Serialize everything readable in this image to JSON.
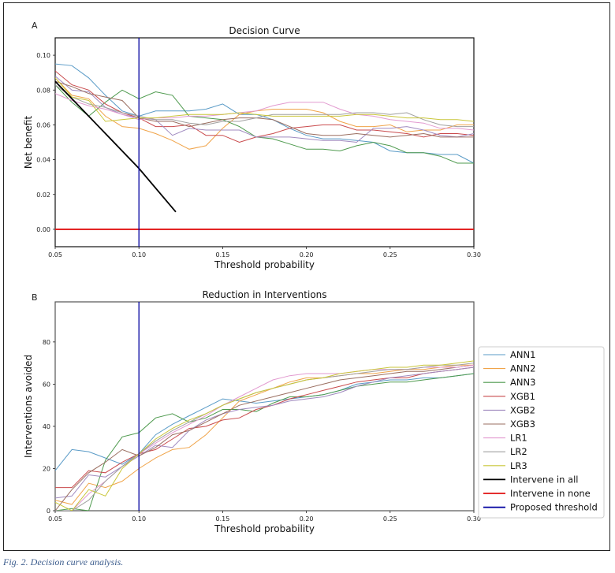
{
  "caption": "Fig. 2. Decision curve analysis.",
  "series_meta": [
    {
      "name": "ANN1",
      "color": "#5a9bc7"
    },
    {
      "name": "ANN2",
      "color": "#f0a44a"
    },
    {
      "name": "ANN3",
      "color": "#4e9a4e"
    },
    {
      "name": "XGB1",
      "color": "#c94a4c"
    },
    {
      "name": "XGB2",
      "color": "#a08abf"
    },
    {
      "name": "XGB3",
      "color": "#9a6e60"
    },
    {
      "name": "LR1",
      "color": "#e29ad0"
    },
    {
      "name": "LR2",
      "color": "#a0a0a0"
    },
    {
      "name": "LR3",
      "color": "#c9c63a"
    },
    {
      "name": "Intervene in all",
      "color": "#000000"
    },
    {
      "name": "Intervene in none",
      "color": "#e01010"
    },
    {
      "name": "Proposed threshold",
      "color": "#0000a0"
    }
  ],
  "chart_data": [
    {
      "panel_label": "A",
      "type": "line",
      "title": "Decision Curve",
      "xlabel": "Threshold probability",
      "ylabel": "Net benefit",
      "xlim": [
        0.05,
        0.3
      ],
      "ylim": [
        -0.01,
        0.11
      ],
      "xticks": [
        "0.05",
        "0.10",
        "0.15",
        "0.20",
        "0.25",
        "0.30"
      ],
      "xtick_values": [
        0.05,
        0.1,
        0.15,
        0.2,
        0.25,
        0.3
      ],
      "yticks": [
        "0.00",
        "0.02",
        "0.04",
        "0.06",
        "0.08",
        "0.10"
      ],
      "ytick_values": [
        0.0,
        0.02,
        0.04,
        0.06,
        0.08,
        0.1
      ],
      "x": [
        0.05,
        0.06,
        0.07,
        0.08,
        0.09,
        0.1,
        0.11,
        0.12,
        0.13,
        0.14,
        0.15,
        0.16,
        0.17,
        0.18,
        0.19,
        0.2,
        0.21,
        0.22,
        0.23,
        0.24,
        0.25,
        0.26,
        0.27,
        0.28,
        0.29,
        0.3
      ],
      "series": [
        {
          "name": "ANN1",
          "values": [
            0.095,
            0.094,
            0.087,
            0.077,
            0.068,
            0.065,
            0.068,
            0.068,
            0.068,
            0.069,
            0.072,
            0.066,
            0.066,
            0.063,
            0.058,
            0.054,
            0.052,
            0.052,
            0.051,
            0.05,
            0.045,
            0.044,
            0.044,
            0.043,
            0.043,
            0.038
          ]
        },
        {
          "name": "ANN2",
          "values": [
            0.087,
            0.077,
            0.075,
            0.065,
            0.059,
            0.058,
            0.055,
            0.051,
            0.046,
            0.048,
            0.058,
            0.066,
            0.068,
            0.069,
            0.069,
            0.069,
            0.067,
            0.062,
            0.059,
            0.059,
            0.06,
            0.056,
            0.057,
            0.057,
            0.06,
            0.06
          ]
        },
        {
          "name": "ANN3",
          "values": [
            0.083,
            0.073,
            0.065,
            0.073,
            0.08,
            0.075,
            0.079,
            0.077,
            0.065,
            0.064,
            0.063,
            0.059,
            0.053,
            0.052,
            0.049,
            0.046,
            0.046,
            0.045,
            0.048,
            0.05,
            0.048,
            0.044,
            0.044,
            0.042,
            0.038,
            0.038
          ]
        },
        {
          "name": "XGB1",
          "values": [
            0.091,
            0.083,
            0.08,
            0.072,
            0.067,
            0.064,
            0.059,
            0.059,
            0.06,
            0.054,
            0.054,
            0.05,
            0.053,
            0.055,
            0.058,
            0.059,
            0.06,
            0.06,
            0.057,
            0.057,
            0.056,
            0.055,
            0.053,
            0.055,
            0.055,
            0.054
          ]
        },
        {
          "name": "XGB2",
          "values": [
            0.088,
            0.08,
            0.079,
            0.07,
            0.066,
            0.064,
            0.063,
            0.054,
            0.058,
            0.057,
            0.057,
            0.057,
            0.053,
            0.053,
            0.053,
            0.052,
            0.051,
            0.051,
            0.05,
            0.058,
            0.058,
            0.059,
            0.057,
            0.054,
            0.053,
            0.055
          ]
        },
        {
          "name": "XGB3",
          "values": [
            0.085,
            0.082,
            0.078,
            0.076,
            0.074,
            0.064,
            0.062,
            0.062,
            0.059,
            0.061,
            0.063,
            0.064,
            0.064,
            0.063,
            0.059,
            0.055,
            0.054,
            0.054,
            0.055,
            0.054,
            0.053,
            0.054,
            0.055,
            0.053,
            0.053,
            0.053
          ]
        },
        {
          "name": "LR1",
          "values": [
            0.078,
            0.074,
            0.071,
            0.069,
            0.066,
            0.063,
            0.064,
            0.064,
            0.065,
            0.065,
            0.066,
            0.067,
            0.068,
            0.071,
            0.073,
            0.073,
            0.073,
            0.069,
            0.066,
            0.065,
            0.063,
            0.062,
            0.061,
            0.058,
            0.058,
            0.057
          ]
        },
        {
          "name": "LR2",
          "values": [
            0.083,
            0.076,
            0.072,
            0.07,
            0.067,
            0.065,
            0.063,
            0.063,
            0.061,
            0.06,
            0.062,
            0.062,
            0.064,
            0.066,
            0.066,
            0.066,
            0.066,
            0.066,
            0.067,
            0.067,
            0.066,
            0.067,
            0.063,
            0.06,
            0.059,
            0.059
          ]
        },
        {
          "name": "LR3",
          "values": [
            0.087,
            0.076,
            0.074,
            0.062,
            0.063,
            0.064,
            0.064,
            0.065,
            0.066,
            0.066,
            0.066,
            0.067,
            0.066,
            0.065,
            0.065,
            0.065,
            0.065,
            0.065,
            0.066,
            0.066,
            0.065,
            0.064,
            0.064,
            0.063,
            0.063,
            0.062
          ]
        }
      ],
      "intervene_all": {
        "x": [
          0.05,
          0.1,
          0.122
        ],
        "values": [
          0.085,
          0.035,
          0.01
        ]
      },
      "intervene_none": {
        "x": [
          0.05,
          0.3
        ],
        "values": [
          0.0,
          0.0
        ]
      },
      "threshold": 0.1
    },
    {
      "panel_label": "B",
      "type": "line",
      "title": "Reduction in Interventions",
      "xlabel": "Threshold probability",
      "ylabel": "Interventions avoided",
      "xlim": [
        0.05,
        0.3
      ],
      "ylim": [
        0,
        99
      ],
      "xticks": [
        "0.05",
        "0.10",
        "0.15",
        "0.20",
        "0.25",
        "0.30"
      ],
      "xtick_values": [
        0.05,
        0.1,
        0.15,
        0.2,
        0.25,
        0.3
      ],
      "yticks": [
        "0",
        "20",
        "40",
        "60",
        "80"
      ],
      "ytick_values": [
        0,
        20,
        40,
        60,
        80
      ],
      "x": [
        0.05,
        0.06,
        0.07,
        0.08,
        0.09,
        0.1,
        0.11,
        0.12,
        0.13,
        0.14,
        0.15,
        0.16,
        0.17,
        0.18,
        0.19,
        0.2,
        0.21,
        0.22,
        0.23,
        0.24,
        0.25,
        0.26,
        0.27,
        0.28,
        0.29,
        0.3
      ],
      "series": [
        {
          "name": "ANN1",
          "values": [
            19,
            29,
            28,
            25,
            22,
            27,
            36,
            41,
            45,
            49,
            53,
            52,
            51,
            52,
            53,
            54,
            55,
            57,
            60,
            61,
            62,
            62,
            63,
            63,
            64,
            65
          ]
        },
        {
          "name": "ANN2",
          "values": [
            5,
            3,
            13,
            11,
            14,
            20,
            25,
            29,
            30,
            36,
            44,
            52,
            55,
            58,
            61,
            63,
            63,
            64,
            65,
            65,
            66,
            67,
            67,
            68,
            69,
            69
          ]
        },
        {
          "name": "ANN3",
          "values": [
            0,
            1,
            0,
            24,
            35,
            37,
            44,
            46,
            42,
            44,
            48,
            48,
            47,
            51,
            54,
            54,
            55,
            57,
            59,
            60,
            61,
            61,
            62,
            63,
            64,
            65
          ]
        },
        {
          "name": "XGB1",
          "values": [
            11,
            11,
            19,
            18,
            23,
            27,
            29,
            34,
            39,
            40,
            43,
            44,
            48,
            50,
            53,
            55,
            57,
            59,
            61,
            62,
            63,
            63,
            65,
            66,
            67,
            68
          ]
        },
        {
          "name": "XGB2",
          "values": [
            6,
            7,
            17,
            16,
            21,
            26,
            31,
            30,
            38,
            43,
            46,
            48,
            49,
            50,
            52,
            53,
            54,
            56,
            59,
            61,
            63,
            64,
            65,
            66,
            67,
            68
          ]
        },
        {
          "name": "XGB3",
          "values": [
            0,
            10,
            18,
            23,
            29,
            26,
            30,
            36,
            38,
            42,
            46,
            50,
            52,
            54,
            56,
            58,
            60,
            62,
            63,
            64,
            65,
            66,
            66,
            67,
            68,
            69
          ]
        },
        {
          "name": "LR1",
          "values": [
            0,
            0,
            8,
            14,
            21,
            27,
            32,
            37,
            41,
            45,
            50,
            54,
            58,
            62,
            64,
            65,
            65,
            65,
            66,
            67,
            67,
            67,
            68,
            68,
            68,
            69
          ]
        },
        {
          "name": "LR2",
          "values": [
            0,
            0,
            5,
            14,
            21,
            27,
            33,
            38,
            42,
            46,
            50,
            53,
            56,
            58,
            60,
            62,
            63,
            64,
            65,
            66,
            67,
            67,
            68,
            69,
            69,
            70
          ]
        },
        {
          "name": "LR3",
          "values": [
            4,
            0,
            10,
            7,
            20,
            27,
            34,
            39,
            43,
            46,
            50,
            53,
            56,
            58,
            60,
            62,
            63,
            65,
            66,
            67,
            68,
            68,
            69,
            69,
            70,
            71
          ]
        }
      ],
      "threshold": 0.1,
      "legend": {
        "placement": "right",
        "entries": [
          "ANN1",
          "ANN2",
          "ANN3",
          "XGB1",
          "XGB2",
          "XGB3",
          "LR1",
          "LR2",
          "LR3",
          "Intervene in all",
          "Intervene in none",
          "Proposed threshold"
        ]
      }
    }
  ]
}
